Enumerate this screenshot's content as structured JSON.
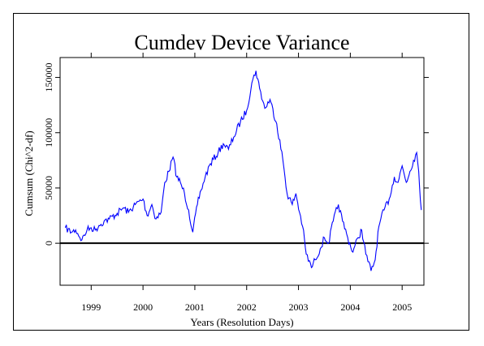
{
  "chart_data": {
    "type": "line",
    "title": "Cumdev Device Variance",
    "xlabel": "Years (Resolution Days)",
    "ylabel": "Cumsum (Chi^2-df)",
    "x_ticks": [
      "1999",
      "2000",
      "2001",
      "2002",
      "2003",
      "2004",
      "2005"
    ],
    "x_tick_years": [
      1999,
      2000,
      2001,
      2002,
      2003,
      2004,
      2005
    ],
    "y_ticks": [
      0,
      50000,
      100000,
      150000
    ],
    "y_tick_labels": [
      "0",
      "50000",
      "100000",
      "150000"
    ],
    "xlim": [
      1998.4,
      2005.42
    ],
    "ylim": [
      -38000,
      168000
    ],
    "reference_line_y": 0,
    "line_color": "#0000ff",
    "series": [
      {
        "x": [
          1998.5,
          1998.62,
          1998.7,
          1998.82,
          1998.92,
          1999.0,
          1999.08,
          1999.15,
          1999.25,
          1999.35,
          1999.5,
          1999.62,
          1999.72,
          1999.85,
          2000.0,
          2000.08,
          2000.17,
          2000.25,
          2000.35,
          2000.42,
          2000.5,
          2000.58,
          2000.65,
          2000.72,
          2000.8,
          2000.88,
          2000.96,
          2001.05,
          2001.12,
          2001.2,
          2001.3,
          2001.45,
          2001.55,
          2001.65,
          2001.75,
          2001.88,
          2002.0,
          2002.1,
          2002.18,
          2002.25,
          2002.35,
          2002.45,
          2002.58,
          2002.7,
          2002.78,
          2002.88,
          2002.95,
          2003.02,
          2003.08,
          2003.15,
          2003.25,
          2003.32,
          2003.42,
          2003.5,
          2003.58,
          2003.67,
          2003.77,
          2003.85,
          2003.95,
          2004.05,
          2004.15,
          2004.22,
          2004.3,
          2004.4,
          2004.48,
          2004.55,
          2004.65,
          2004.75,
          2004.85,
          2004.92,
          2005.0,
          2005.08,
          2005.15,
          2005.22,
          2005.28,
          2005.32,
          2005.37
        ],
        "y": [
          14000,
          10000,
          12000,
          3000,
          12000,
          14000,
          12000,
          16000,
          20000,
          22000,
          27000,
          32000,
          28000,
          35000,
          40000,
          25000,
          35000,
          22000,
          28000,
          55000,
          65000,
          78000,
          60000,
          55000,
          45000,
          30000,
          10000,
          35000,
          48000,
          60000,
          72000,
          82000,
          90000,
          85000,
          96000,
          110000,
          120000,
          145000,
          156000,
          140000,
          122000,
          130000,
          108000,
          75000,
          45000,
          35000,
          45000,
          28000,
          15000,
          -10000,
          -22000,
          -15000,
          -5000,
          5000,
          0,
          20000,
          35000,
          20000,
          5000,
          -8000,
          5000,
          12000,
          -10000,
          -25000,
          -15000,
          15000,
          30000,
          40000,
          60000,
          55000,
          70000,
          55000,
          65000,
          75000,
          82000,
          65000,
          30000
        ]
      }
    ]
  }
}
